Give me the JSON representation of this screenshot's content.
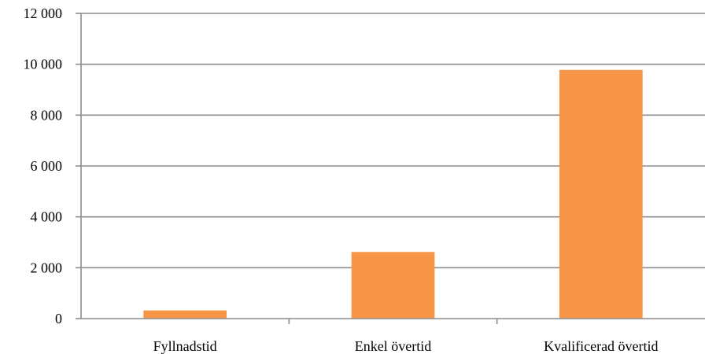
{
  "chart_data": {
    "type": "bar",
    "title": "",
    "xlabel": "",
    "ylabel": "",
    "categories": [
      "Fyllnadstid",
      "Enkel övertid",
      "Kvalificerad övertid"
    ],
    "values": [
      320,
      2620,
      9780
    ],
    "ylim": [
      0,
      12000
    ],
    "yticks": [
      0,
      2000,
      4000,
      6000,
      8000,
      10000,
      12000
    ],
    "ytick_labels": [
      "0",
      "2 000",
      "4 000",
      "6 000",
      "8 000",
      "10 000",
      "12 000"
    ],
    "grid": true,
    "legend": "none",
    "bar_color": "#f79646",
    "grid_color": "#8c8c8c"
  }
}
